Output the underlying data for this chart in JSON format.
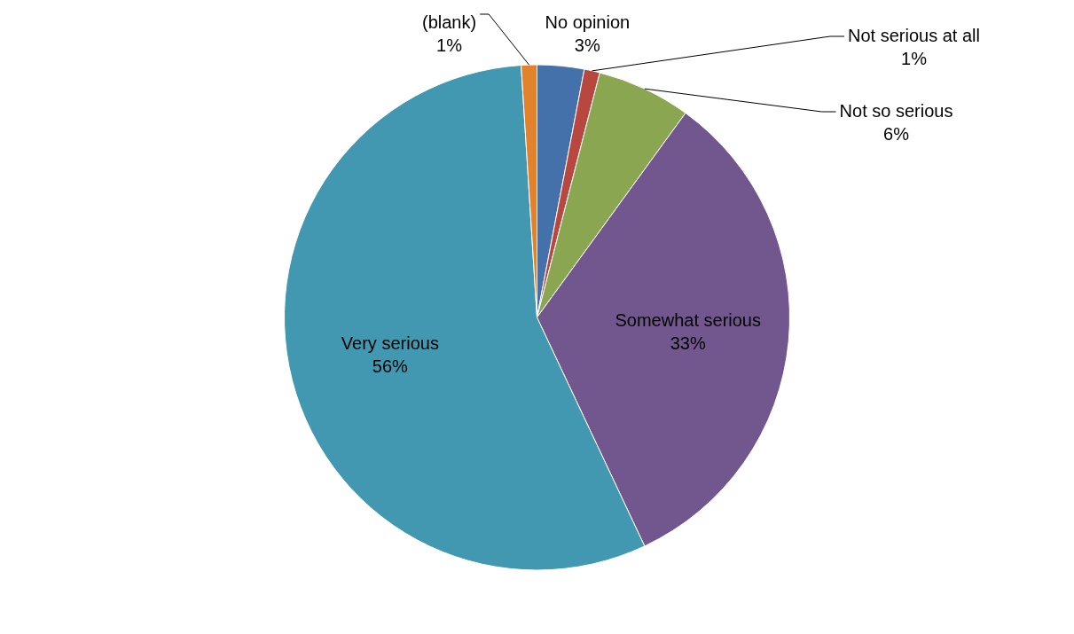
{
  "chart_data": {
    "type": "pie",
    "categories": [
      "No opinion",
      "Not serious at all",
      "Not so serious",
      "Somewhat serious",
      "Very serious",
      "(blank)"
    ],
    "values": [
      3,
      1,
      6,
      33,
      56,
      1
    ],
    "value_labels": [
      "3%",
      "1%",
      "6%",
      "33%",
      "56%",
      "1%"
    ],
    "colors": [
      "#4471a9",
      "#b7473f",
      "#8ba650",
      "#72578e",
      "#4298b0",
      "#e2822d"
    ]
  }
}
